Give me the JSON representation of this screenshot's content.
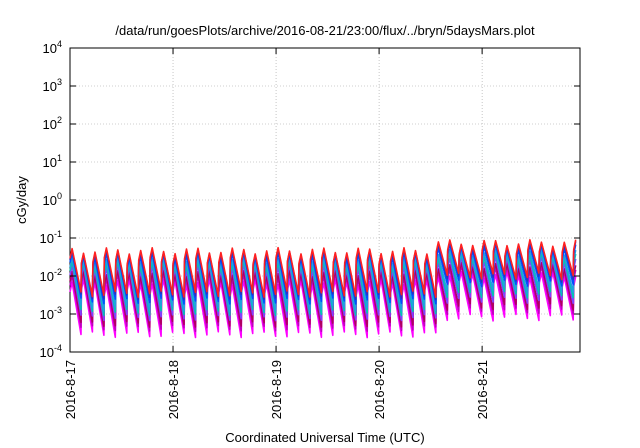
{
  "chart_data": {
    "type": "line",
    "title": "/data/run/goesPlots/archive/2016-08-21/23:00/flux/../bryn/5daysMars.plot",
    "xlabel": "Coordinated Universal Time (UTC)",
    "ylabel": "cGy/day",
    "yscale": "log",
    "ylim": [
      0.0001,
      10000
    ],
    "xlim": [
      0,
      4.95
    ],
    "grid": true,
    "y_ticks": [
      {
        "value": 0.0001,
        "base": "10",
        "exp": "-4"
      },
      {
        "value": 0.001,
        "base": "10",
        "exp": "-3"
      },
      {
        "value": 0.01,
        "base": "10",
        "exp": "-2"
      },
      {
        "value": 0.1,
        "base": "10",
        "exp": "-1"
      },
      {
        "value": 1,
        "base": "10",
        "exp": "0"
      },
      {
        "value": 10,
        "base": "10",
        "exp": "1"
      },
      {
        "value": 100,
        "base": "10",
        "exp": "2"
      },
      {
        "value": 1000,
        "base": "10",
        "exp": "3"
      },
      {
        "value": 10000,
        "base": "10",
        "exp": "4"
      }
    ],
    "x_ticks": [
      {
        "value": 0,
        "label": "2016-8-17"
      },
      {
        "value": 1,
        "label": "2016-8-18"
      },
      {
        "value": 2,
        "label": "2016-8-19"
      },
      {
        "value": 3,
        "label": "2016-8-20"
      },
      {
        "value": 4,
        "label": "2016-8-21"
      }
    ],
    "sawtooth": {
      "period_days": 0.1111,
      "peak_lin_max": [
        0.02,
        0.055
      ],
      "trough_lin_max": [
        0.0015,
        0.004
      ],
      "late_peak_lin_max": [
        0.03,
        0.09
      ],
      "late_trough_lin_max": [
        0.004,
        0.012
      ],
      "late_start_day": 3.55
    },
    "series": [
      {
        "color": "#ff00ff",
        "scale": 0.14
      },
      {
        "color": "#c000c0",
        "scale": 0.2
      },
      {
        "color": "#b00060",
        "scale": 0.25
      },
      {
        "color": "#8040ff",
        "scale": 0.35
      },
      {
        "color": "#00c8b0",
        "scale": 0.45
      },
      {
        "color": "#20a0e0",
        "scale": 0.55
      },
      {
        "color": "#0050ff",
        "scale": 0.75
      },
      {
        "color": "#3030c0",
        "scale": 0.9
      },
      {
        "color": "#ff2020",
        "scale": 1.0
      }
    ]
  }
}
